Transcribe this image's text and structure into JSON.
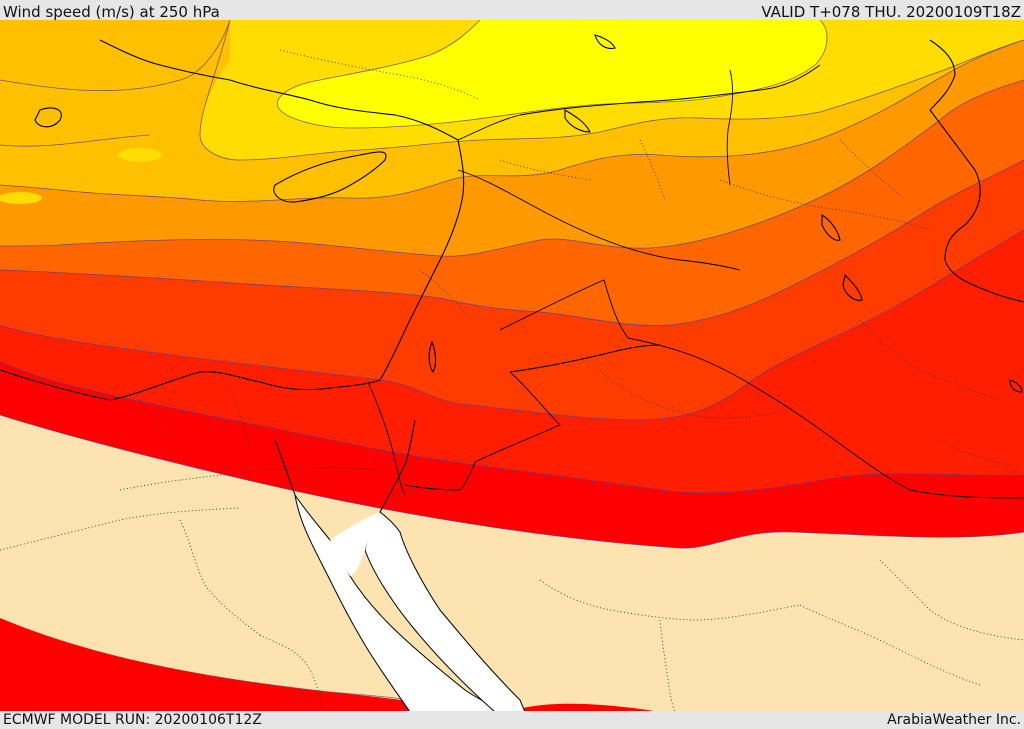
{
  "header": {
    "title": "Wind speed (m/s) at 250 hPa",
    "valid_time": "VALID T+078 THU. 20200109T18Z"
  },
  "footer": {
    "model_run": "ECMWF MODEL RUN: 20200106T12Z",
    "credit": "ArabiaWeather Inc."
  },
  "colors": {
    "band_1": "#fde3b0",
    "band_2": "#ff0000",
    "band_3": "#ff1f00",
    "band_4": "#ff3c00",
    "band_5": "#ff6600",
    "band_6": "#ff9900",
    "band_7": "#ffc000",
    "band_8": "#ffdd00",
    "band_9": "#ffff00",
    "sea": "#ffffff",
    "coast": "#000000",
    "contour": "#5a3a8a"
  }
}
